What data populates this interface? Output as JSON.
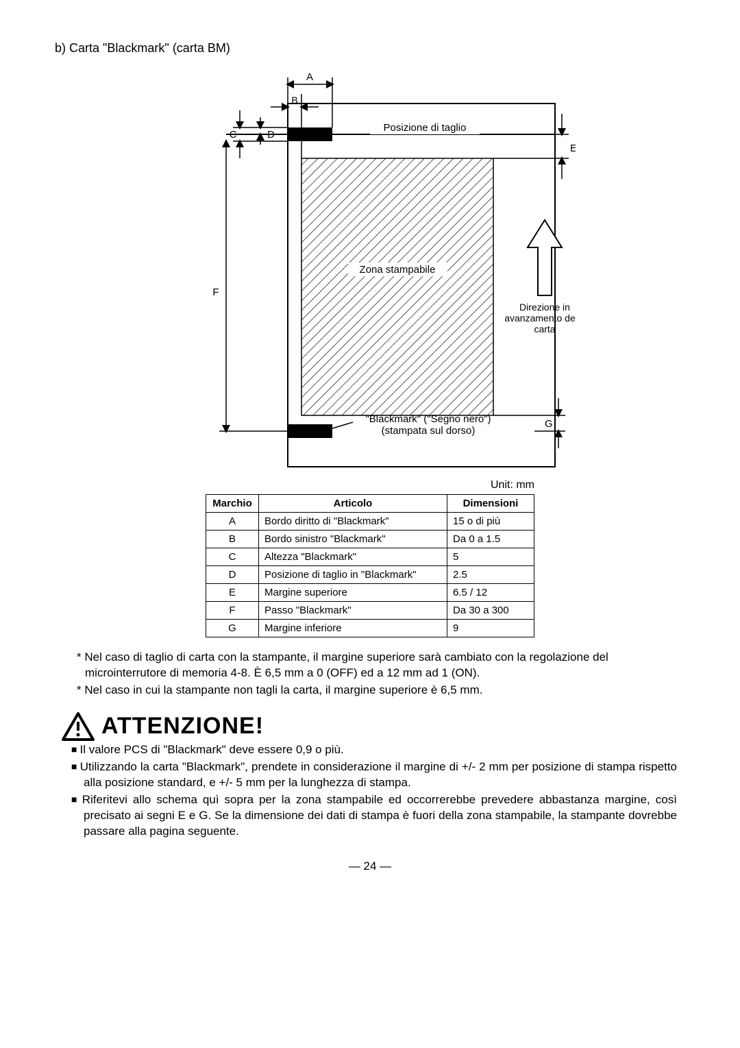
{
  "section_title": "b) Carta \"Blackmark\" (carta BM)",
  "diagram": {
    "labels": {
      "A": "A",
      "B": "B",
      "C": "C",
      "D": "D",
      "E": "E",
      "F": "F",
      "G": "G"
    },
    "cut_position": "Posizione di taglio",
    "printable_zone": "Zona stampabile",
    "feed_direction": "Direzione in avanzamento della carta",
    "blackmark_note_1": "\"Blackmark\" (\"Segno nero\")",
    "blackmark_note_2": "(stampata sul dorso)",
    "unit": "Unit: mm",
    "stroke_color": "#000000",
    "hatch_color": "#000000",
    "bg": "#ffffff",
    "font_size_label": 16,
    "font_size_small": 14
  },
  "table": {
    "headers": {
      "mark": "Marchio",
      "article": "Articolo",
      "dim": "Dimensioni"
    },
    "rows": [
      {
        "mark": "A",
        "article": "Bordo diritto di \"Blackmark\"",
        "dim": "15 o di più"
      },
      {
        "mark": "B",
        "article": "Bordo sinistro \"Blackmark\"",
        "dim": "Da 0 a 1.5"
      },
      {
        "mark": "C",
        "article": "Altezza \"Blackmark\"",
        "dim": "5"
      },
      {
        "mark": "D",
        "article": "Posizione di taglio in \"Blackmark\"",
        "dim": "2.5"
      },
      {
        "mark": "E",
        "article": "Margine superiore",
        "dim": "6.5 / 12"
      },
      {
        "mark": "F",
        "article": "Passo \"Blackmark\"",
        "dim": "Da 30 a 300"
      },
      {
        "mark": "G",
        "article": "Margine inferiore",
        "dim": "9"
      }
    ]
  },
  "notes": {
    "n1": "* Nel caso di taglio di carta con la stampante, il margine superiore sarà cambiato con la regolazione del microinterrutore di memoria 4-8.  È 6,5 mm a 0 (OFF) ed a 12 mm ad 1 (ON).",
    "n2": "* Nel caso in cui la stampante non tagli la carta, il margine superiore è 6,5 mm."
  },
  "warning": {
    "title": "ATTENZIONE!",
    "items": [
      "Il valore PCS di \"Blackmark\" deve essere 0,9 o più.",
      "Utilizzando la carta \"Blackmark\", prendete in considerazione il margine di +/- 2 mm per posizione di stampa rispetto alla posizione standard, e +/- 5 mm per la lunghezza di stampa.",
      "Riferitevi allo schema quì sopra per la zona stampabile ed occorrerebbe prevedere abbastanza margine, così precisato ai segni E e G.  Se la dimensione dei dati di stampa è fuori della zona stampabile, la stampante dovrebbe passare alla pagina seguente."
    ]
  },
  "page_number": "— 24 —"
}
